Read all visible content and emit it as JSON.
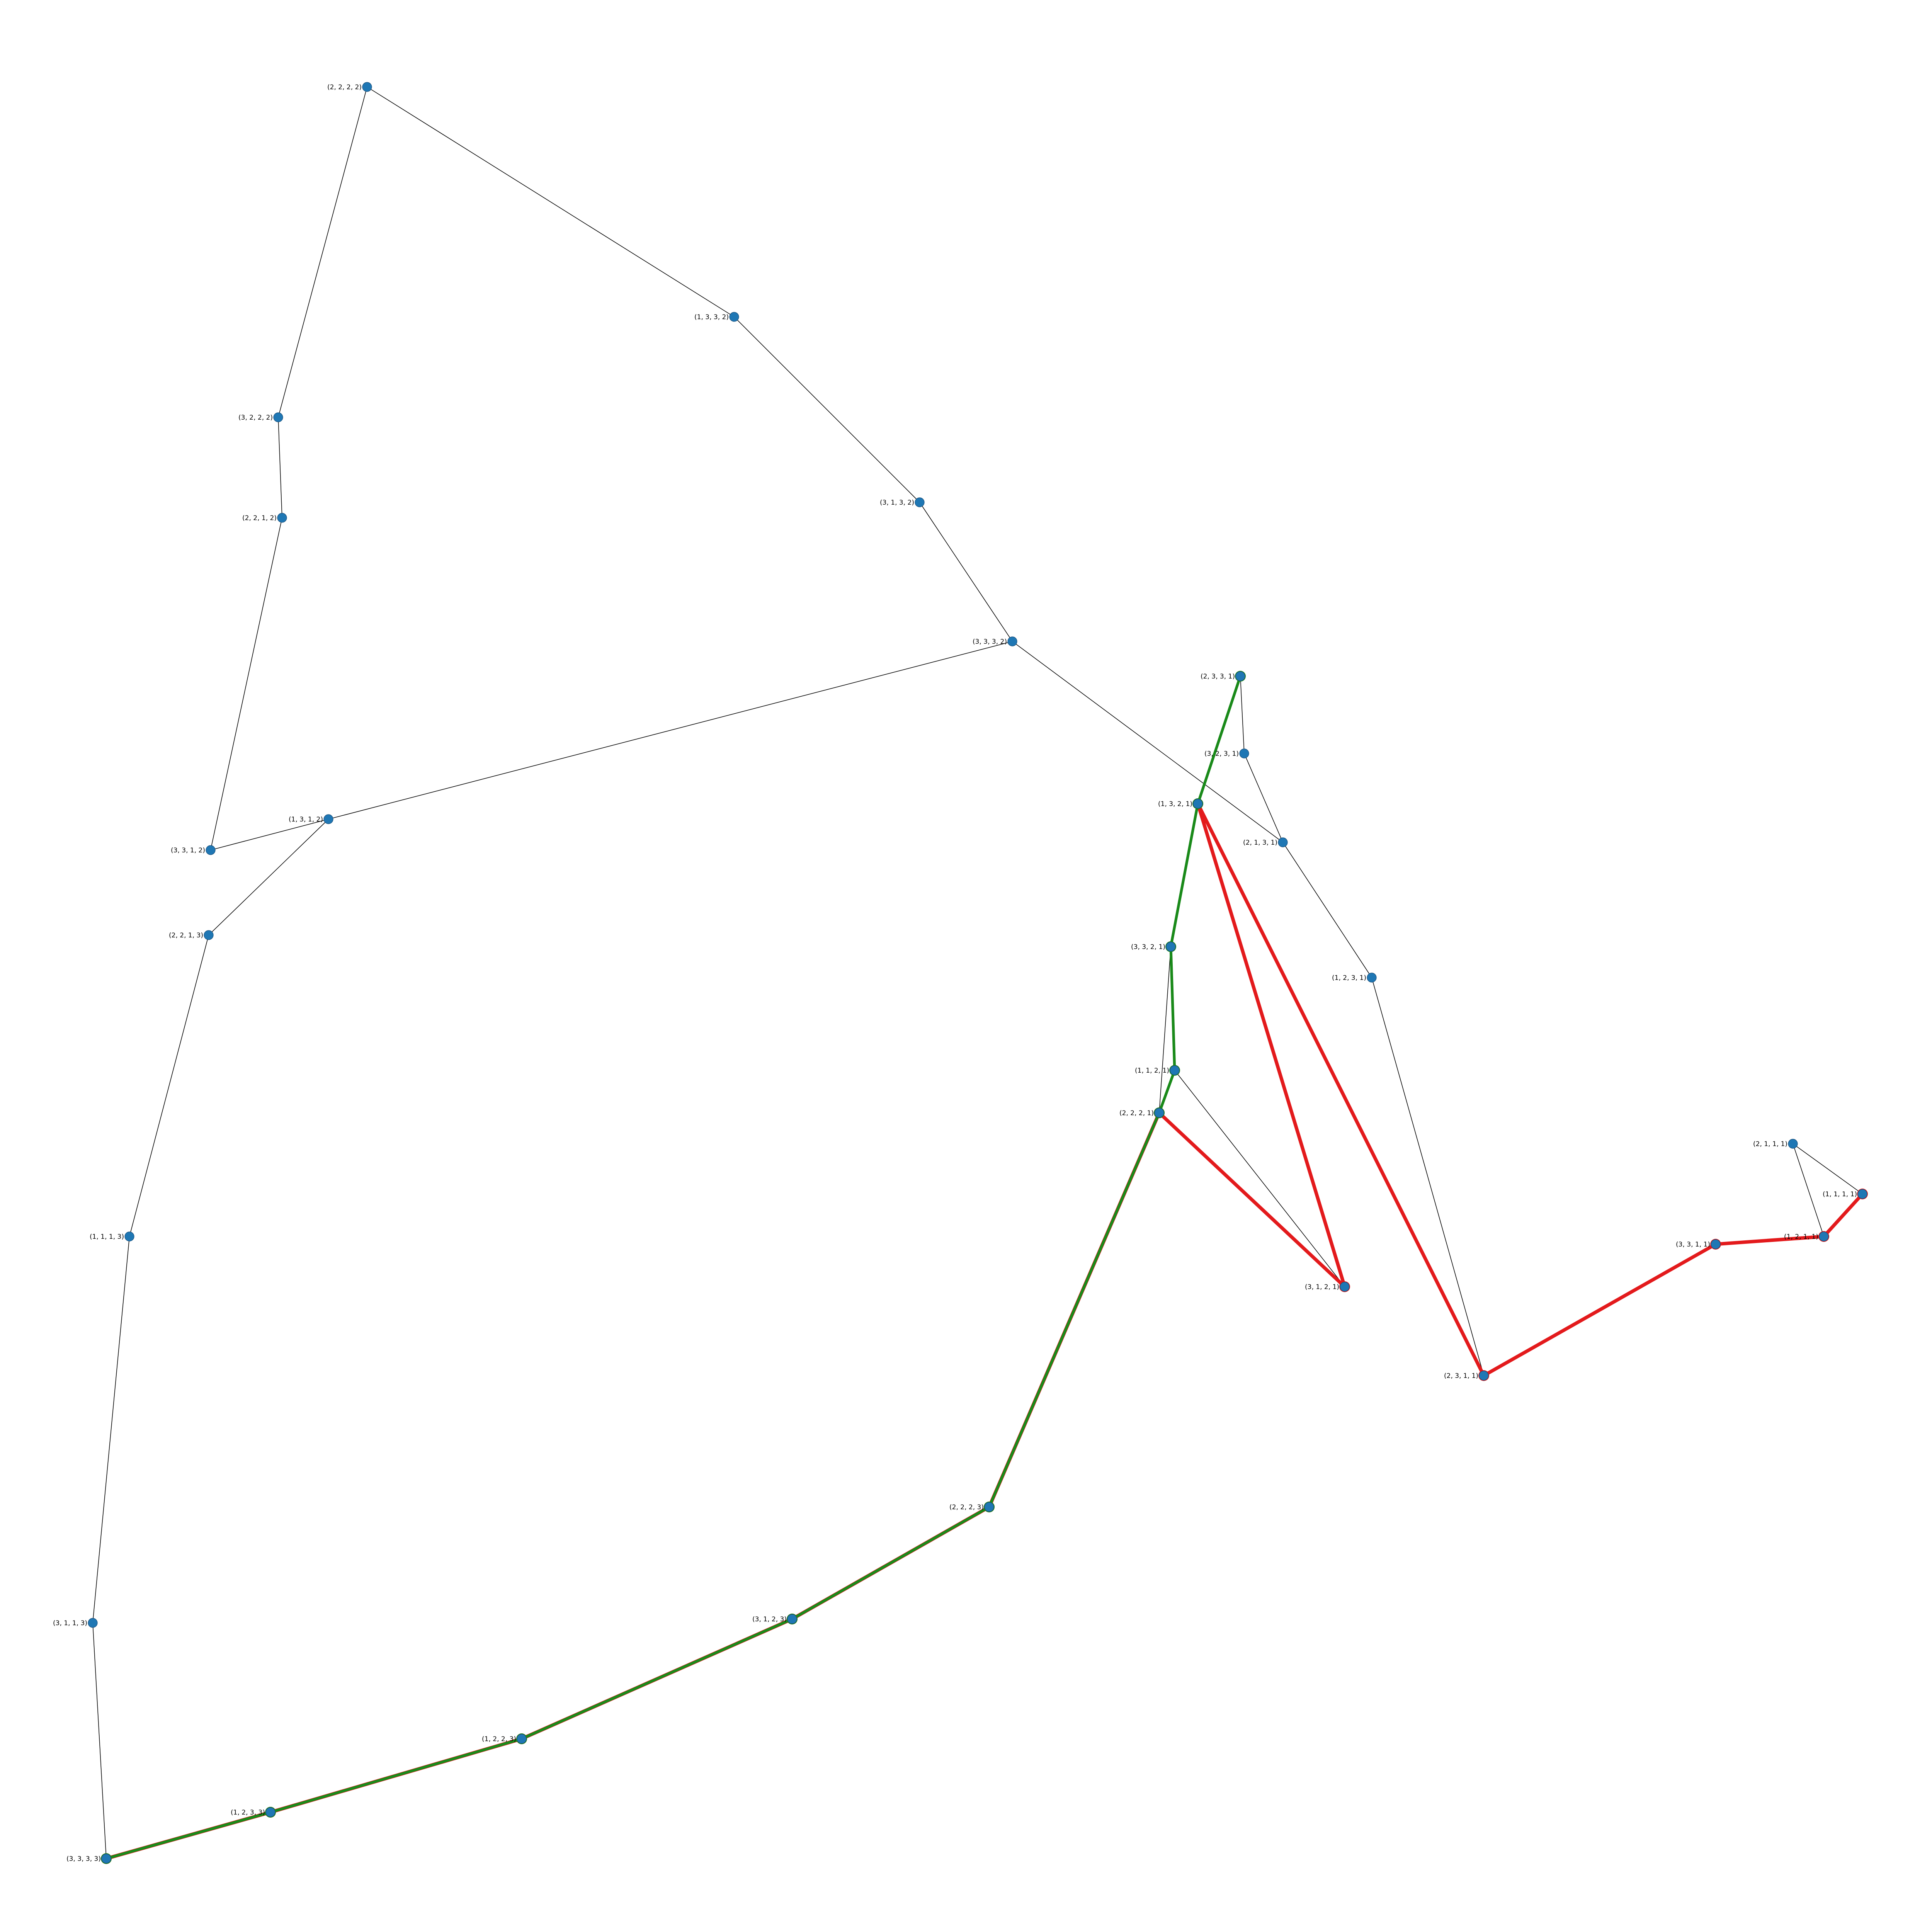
{
  "colors": {
    "background": "#ffffff",
    "node": "#1f77b4",
    "edge": "#000000",
    "path_red": "#e31a1c",
    "path_green": "#1a8a1a",
    "path_shared": "#6b4513"
  },
  "nodes": [
    {
      "id": "2221",
      "label": "(2, 2, 2, 1)"
    },
    {
      "id": "2331",
      "label": "(2, 3, 3, 1)"
    },
    {
      "id": "1111",
      "label": "(1, 1, 1, 1)"
    },
    {
      "id": "3333",
      "label": "(3, 3, 3, 3)"
    },
    {
      "id": "2222",
      "label": "(2, 2, 2, 2)"
    },
    {
      "id": "3222",
      "label": "(3, 2, 2, 2)"
    },
    {
      "id": "3312",
      "label": "(3, 3, 1, 2)"
    },
    {
      "id": "1312",
      "label": "(1, 3, 1, 2)"
    },
    {
      "id": "1332",
      "label": "(1, 3, 3, 2)"
    },
    {
      "id": "3132",
      "label": "(3, 1, 3, 2)"
    },
    {
      "id": "1113",
      "label": "(1, 1, 1, 3)"
    },
    {
      "id": "2213",
      "label": "(2, 2, 1, 3)"
    },
    {
      "id": "3123",
      "label": "(3, 1, 2, 3)"
    },
    {
      "id": "2223",
      "label": "(2, 2, 2, 3)"
    },
    {
      "id": "1223",
      "label": "(1, 2, 2, 3)"
    },
    {
      "id": "1233",
      "label": "(1, 2, 3, 3)"
    },
    {
      "id": "3231",
      "label": "(3, 2, 3, 1)"
    },
    {
      "id": "2131",
      "label": "(2, 1, 3, 1)"
    },
    {
      "id": "3121",
      "label": "(3, 1, 2, 1)"
    },
    {
      "id": "1321",
      "label": "(1, 3, 2, 1)"
    },
    {
      "id": "2311",
      "label": "(2, 3, 1, 1)"
    },
    {
      "id": "1211",
      "label": "(1, 2, 1, 1)"
    },
    {
      "id": "3321",
      "label": "(3, 3, 2, 1)"
    },
    {
      "id": "1121",
      "label": "(1, 1, 2, 1)"
    },
    {
      "id": "3311",
      "label": "(3, 3, 1, 1)"
    },
    {
      "id": "2111",
      "label": "(2, 1, 1, 1)"
    },
    {
      "id": "1231",
      "label": "(1, 2, 3, 1)"
    },
    {
      "id": "3113",
      "label": "(3, 1, 1, 3)"
    },
    {
      "id": "3332",
      "label": "(3, 3, 3, 2)"
    },
    {
      "id": "2212",
      "label": "(2, 2, 1, 2)"
    }
  ],
  "edges": [
    [
      "2222",
      "3222"
    ],
    [
      "3222",
      "2212"
    ],
    [
      "2212",
      "3312"
    ],
    [
      "3312",
      "1312"
    ],
    [
      "1312",
      "2213"
    ],
    [
      "2213",
      "1113"
    ],
    [
      "1113",
      "3113"
    ],
    [
      "3113",
      "3333"
    ],
    [
      "3333",
      "1233"
    ],
    [
      "1233",
      "1223"
    ],
    [
      "1223",
      "3123"
    ],
    [
      "3123",
      "2223"
    ],
    [
      "2223",
      "2221"
    ],
    [
      "2221",
      "3121"
    ],
    [
      "3121",
      "1121"
    ],
    [
      "1121",
      "3321"
    ],
    [
      "3321",
      "1321"
    ],
    [
      "1321",
      "2331"
    ],
    [
      "2331",
      "3231"
    ],
    [
      "3231",
      "2131"
    ],
    [
      "2131",
      "1231"
    ],
    [
      "1231",
      "2311"
    ],
    [
      "2311",
      "3311"
    ],
    [
      "3311",
      "1211"
    ],
    [
      "1211",
      "2111"
    ],
    [
      "2111",
      "1111"
    ],
    [
      "2222",
      "1332"
    ],
    [
      "1332",
      "3132"
    ],
    [
      "3132",
      "3332"
    ],
    [
      "3332",
      "1312"
    ],
    [
      "3332",
      "2131"
    ],
    [
      "2221",
      "3321"
    ]
  ],
  "paths": [
    {
      "color": "red",
      "nodes": [
        "3333",
        "1233",
        "1223",
        "3123",
        "2223",
        "2221",
        "3121",
        "1321",
        "2311",
        "3311",
        "1211",
        "1111"
      ]
    },
    {
      "color": "green",
      "nodes": [
        "3333",
        "1233",
        "1223",
        "3123",
        "2223",
        "2221",
        "1121",
        "3321",
        "1321",
        "2331"
      ]
    }
  ]
}
